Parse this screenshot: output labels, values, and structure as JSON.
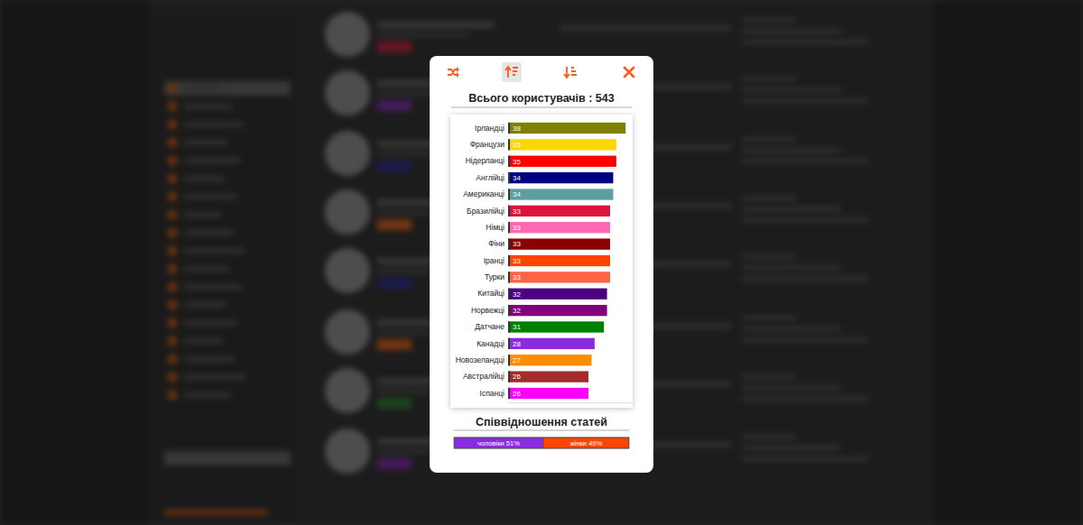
{
  "chart_data": [
    {
      "type": "bar",
      "orientation": "horizontal",
      "title": "Всього користувачів : 543",
      "categories": [
        "Ірландці",
        "Французи",
        "Нідерланці",
        "Англійці",
        "Американці",
        "Бразилійці",
        "Німці",
        "Фіни",
        "Іранці",
        "Турки",
        "Китайці",
        "Норвежці",
        "Датчане",
        "Канадці",
        "Новозеландці",
        "Австралійці",
        "Іспанці"
      ],
      "values": [
        38,
        35,
        35,
        34,
        34,
        33,
        33,
        33,
        33,
        33,
        32,
        32,
        31,
        28,
        27,
        26,
        26
      ],
      "colors": [
        "#808000",
        "#ffd700",
        "#ff0000",
        "#000080",
        "#5f9ea0",
        "#dc143c",
        "#ff69b4",
        "#8b0000",
        "#ff4500",
        "#ff6347",
        "#4b0082",
        "#800080",
        "#008000",
        "#8a2be2",
        "#ff8c00",
        "#a52a2a",
        "#ff00ff"
      ],
      "xlim": [
        0,
        40
      ],
      "tick_labels": false,
      "data_labels": true
    },
    {
      "type": "bar",
      "orientation": "horizontal",
      "stacked": true,
      "title": "Співвідношення статей",
      "categories": [
        null
      ],
      "series": [
        {
          "name": "чоловіки",
          "color": "#8a2be2",
          "values": [
            51
          ],
          "value_labels": [
            "чоловіки 51%"
          ]
        },
        {
          "name": "жінки",
          "color": "#ff4500",
          "values": [
            49
          ],
          "value_labels": [
            "жінки 49%"
          ]
        }
      ],
      "xlim": [
        0,
        100
      ],
      "tick_labels": false,
      "data_labels": true
    }
  ]
}
